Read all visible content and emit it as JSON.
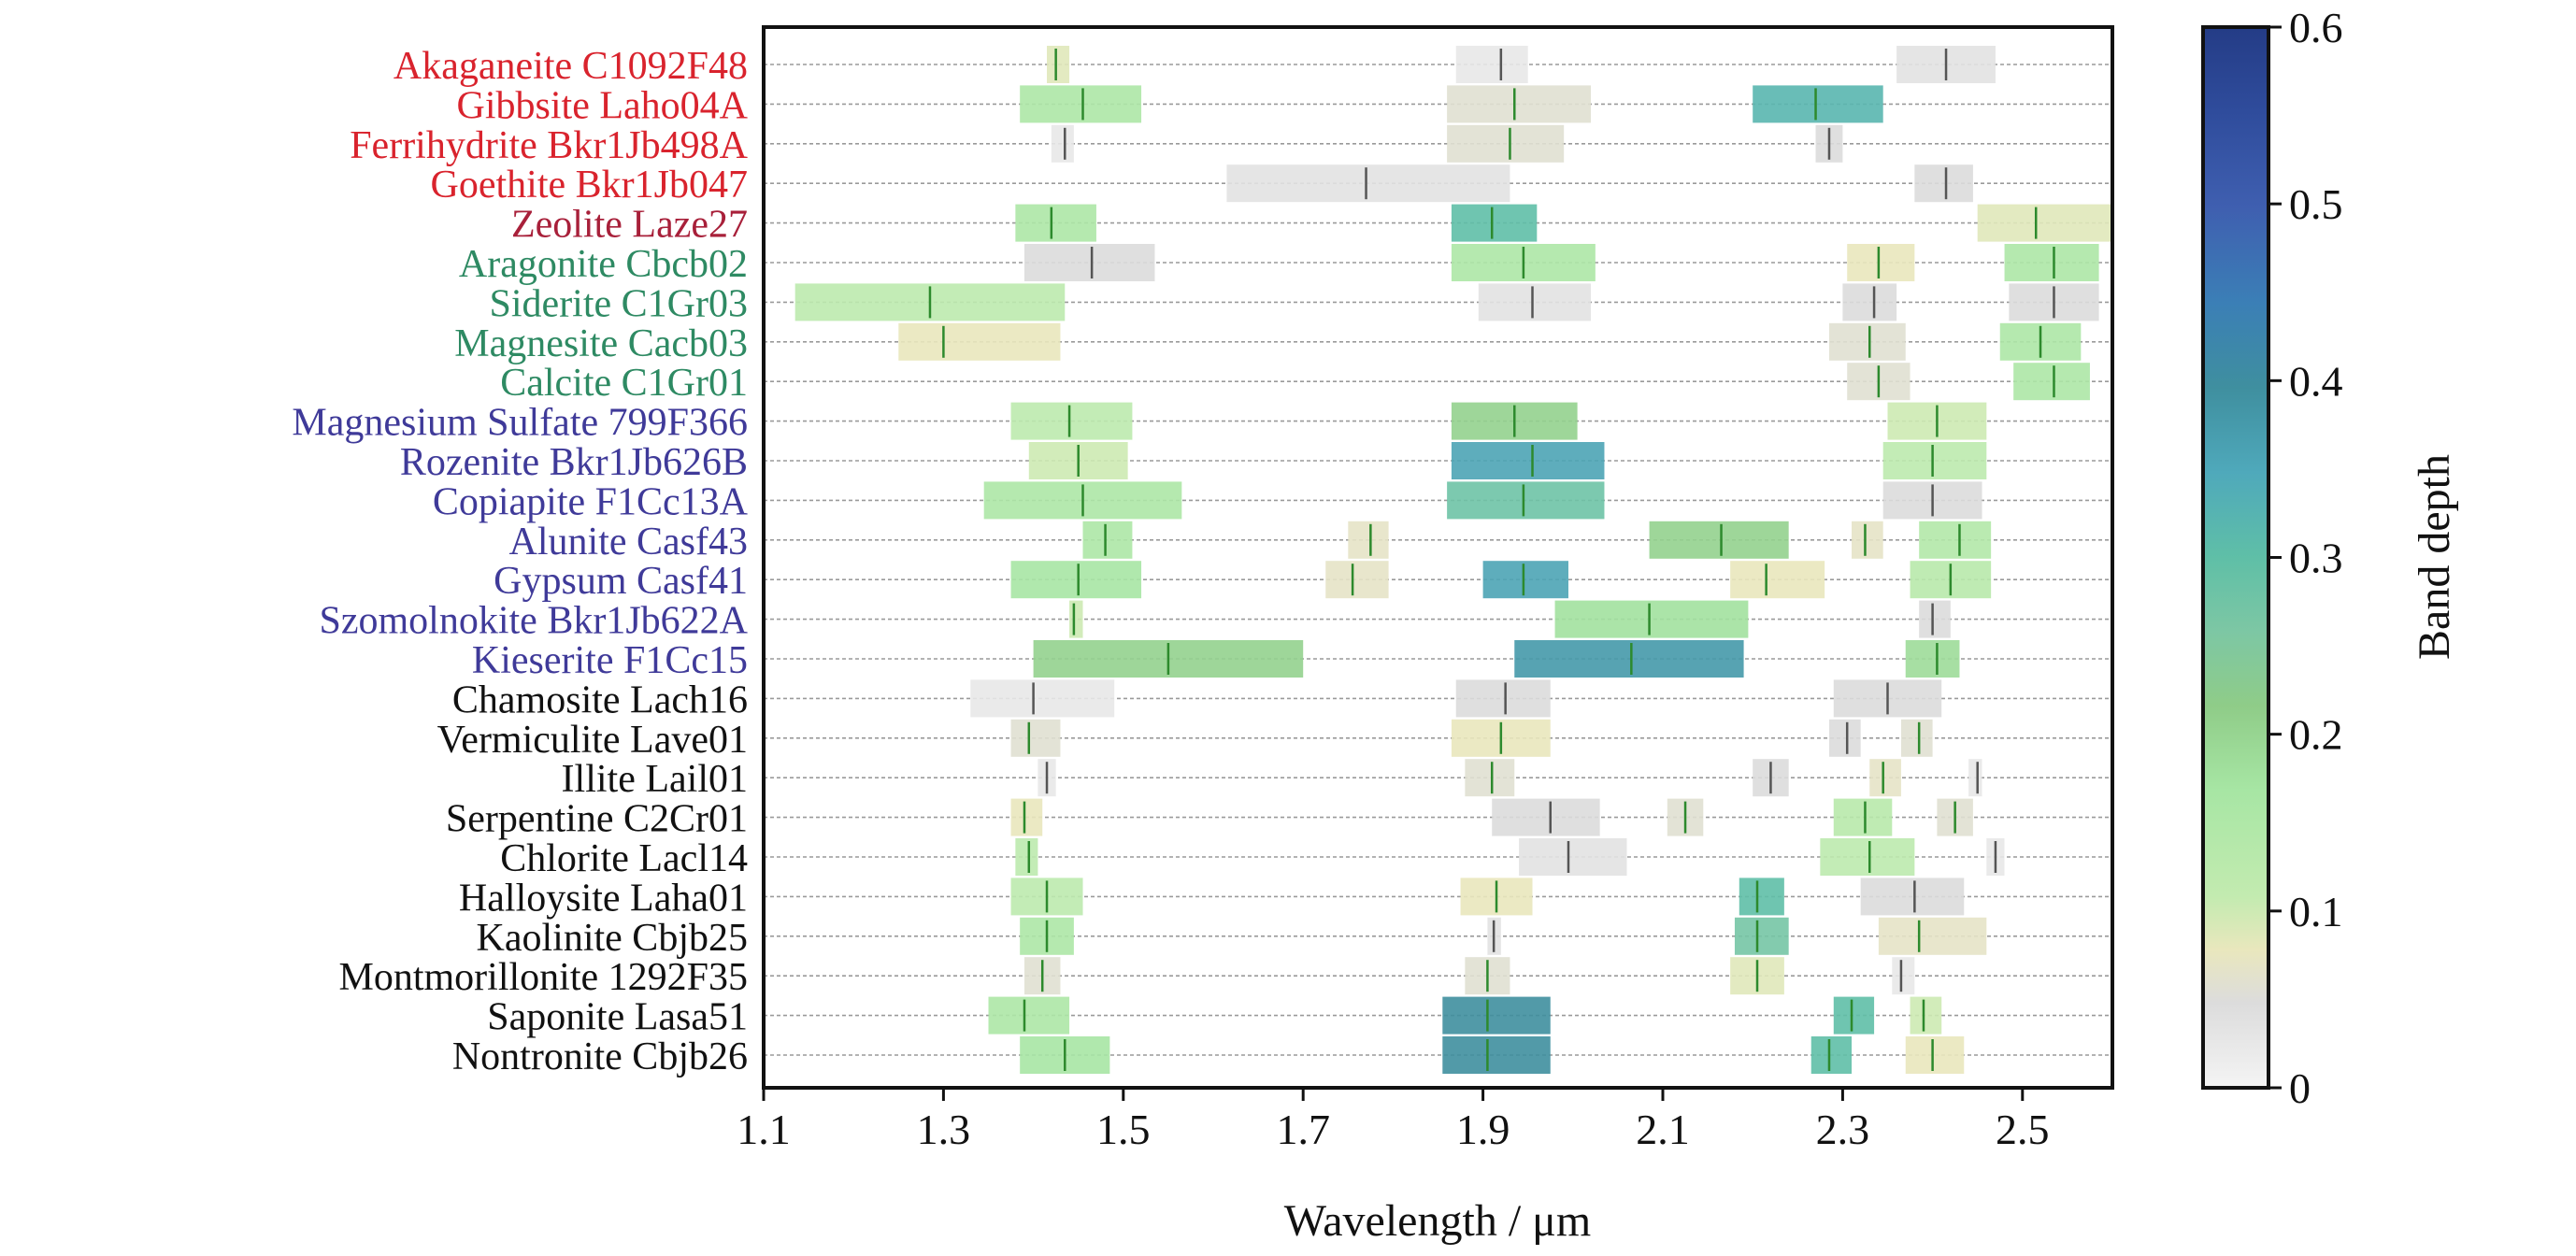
{
  "chart_data": {
    "type": "range-bar",
    "xlabel": "Wavelength / μm",
    "xlim": [
      1.1,
      2.6
    ],
    "xticks": [
      "1.1",
      "1.3",
      "1.5",
      "1.7",
      "1.9",
      "2.1",
      "2.3",
      "2.5"
    ],
    "colorbar": {
      "label": "Band depth",
      "range": [
        0,
        0.6
      ],
      "ticks": [
        "0",
        "0.1",
        "0.2",
        "0.3",
        "0.4",
        "0.5",
        "0.6"
      ]
    },
    "group_colors": {
      "red": "#d9232d",
      "maroon": "#a8203a",
      "green": "#2e8a63",
      "blue": "#3f3a99",
      "black": "#111111"
    },
    "minerals": [
      {
        "name": "Akaganeite C1092F48",
        "group": "red",
        "bands": [
          {
            "lo": 1.415,
            "hi": 1.44,
            "c": 1.425,
            "d": 0.08
          },
          {
            "lo": 1.87,
            "hi": 1.95,
            "c": 1.92,
            "d": 0.02
          },
          {
            "lo": 2.36,
            "hi": 2.47,
            "c": 2.415,
            "d": 0.03
          }
        ]
      },
      {
        "name": "Gibbsite Laho04A",
        "group": "red",
        "bands": [
          {
            "lo": 1.385,
            "hi": 1.52,
            "c": 1.455,
            "d": 0.15
          },
          {
            "lo": 1.86,
            "hi": 2.02,
            "c": 1.935,
            "d": 0.05
          },
          {
            "lo": 2.2,
            "hi": 2.345,
            "c": 2.27,
            "d": 0.32
          }
        ]
      },
      {
        "name": "Ferrihydrite Bkr1Jb498A",
        "group": "red",
        "bands": [
          {
            "lo": 1.42,
            "hi": 1.445,
            "c": 1.435,
            "d": 0.02
          },
          {
            "lo": 1.86,
            "hi": 1.99,
            "c": 1.93,
            "d": 0.05
          },
          {
            "lo": 2.27,
            "hi": 2.3,
            "c": 2.285,
            "d": 0.04
          }
        ]
      },
      {
        "name": "Goethite Bkr1Jb047",
        "group": "red",
        "bands": [
          {
            "lo": 1.615,
            "hi": 1.93,
            "c": 1.77,
            "d": 0.03
          },
          {
            "lo": 2.38,
            "hi": 2.445,
            "c": 2.415,
            "d": 0.04
          }
        ]
      },
      {
        "name": "Zeolite Laze27",
        "group": "maroon",
        "bands": [
          {
            "lo": 1.38,
            "hi": 1.47,
            "c": 1.42,
            "d": 0.15
          },
          {
            "lo": 1.865,
            "hi": 1.96,
            "c": 1.91,
            "d": 0.3
          },
          {
            "lo": 2.45,
            "hi": 2.6,
            "c": 2.515,
            "d": 0.08
          }
        ]
      },
      {
        "name": "Aragonite Cbcb02",
        "group": "green",
        "bands": [
          {
            "lo": 1.39,
            "hi": 1.535,
            "c": 1.465,
            "d": 0.04
          },
          {
            "lo": 1.865,
            "hi": 2.025,
            "c": 1.945,
            "d": 0.15
          },
          {
            "lo": 2.305,
            "hi": 2.38,
            "c": 2.34,
            "d": 0.07
          },
          {
            "lo": 2.48,
            "hi": 2.585,
            "c": 2.535,
            "d": 0.15
          }
        ]
      },
      {
        "name": "Siderite C1Gr03",
        "group": "green",
        "bands": [
          {
            "lo": 1.135,
            "hi": 1.435,
            "c": 1.285,
            "d": 0.12
          },
          {
            "lo": 1.895,
            "hi": 2.02,
            "c": 1.955,
            "d": 0.03
          },
          {
            "lo": 2.3,
            "hi": 2.36,
            "c": 2.335,
            "d": 0.04
          },
          {
            "lo": 2.485,
            "hi": 2.585,
            "c": 2.535,
            "d": 0.04
          }
        ]
      },
      {
        "name": "Magnesite Cacb03",
        "group": "green",
        "bands": [
          {
            "lo": 1.25,
            "hi": 1.43,
            "c": 1.3,
            "d": 0.07
          },
          {
            "lo": 2.285,
            "hi": 2.37,
            "c": 2.33,
            "d": 0.05
          },
          {
            "lo": 2.475,
            "hi": 2.565,
            "c": 2.52,
            "d": 0.15
          }
        ]
      },
      {
        "name": "Calcite C1Gr01",
        "group": "green",
        "bands": [
          {
            "lo": 2.305,
            "hi": 2.375,
            "c": 2.34,
            "d": 0.05
          },
          {
            "lo": 2.49,
            "hi": 2.575,
            "c": 2.535,
            "d": 0.15
          }
        ]
      },
      {
        "name": "Magnesium Sulfate 799F366",
        "group": "blue",
        "bands": [
          {
            "lo": 1.375,
            "hi": 1.51,
            "c": 1.44,
            "d": 0.12
          },
          {
            "lo": 1.865,
            "hi": 2.005,
            "c": 1.935,
            "d": 0.2
          },
          {
            "lo": 2.35,
            "hi": 2.46,
            "c": 2.405,
            "d": 0.1
          }
        ]
      },
      {
        "name": "Rozenite Bkr1Jb626B",
        "group": "blue",
        "bands": [
          {
            "lo": 1.395,
            "hi": 1.505,
            "c": 1.45,
            "d": 0.1
          },
          {
            "lo": 1.865,
            "hi": 2.035,
            "c": 1.955,
            "d": 0.36
          },
          {
            "lo": 2.345,
            "hi": 2.46,
            "c": 2.4,
            "d": 0.12
          }
        ]
      },
      {
        "name": "Copiapite F1Cc13A",
        "group": "blue",
        "bands": [
          {
            "lo": 1.345,
            "hi": 1.565,
            "c": 1.455,
            "d": 0.15
          },
          {
            "lo": 1.86,
            "hi": 2.035,
            "c": 1.945,
            "d": 0.28
          },
          {
            "lo": 2.345,
            "hi": 2.455,
            "c": 2.4,
            "d": 0.04
          }
        ]
      },
      {
        "name": "Alunite Casf43",
        "group": "blue",
        "bands": [
          {
            "lo": 1.455,
            "hi": 1.51,
            "c": 1.48,
            "d": 0.15
          },
          {
            "lo": 1.75,
            "hi": 1.795,
            "c": 1.775,
            "d": 0.06
          },
          {
            "lo": 2.085,
            "hi": 2.24,
            "c": 2.165,
            "d": 0.2
          },
          {
            "lo": 2.31,
            "hi": 2.345,
            "c": 2.325,
            "d": 0.06
          },
          {
            "lo": 2.385,
            "hi": 2.465,
            "c": 2.43,
            "d": 0.14
          }
        ]
      },
      {
        "name": "Gypsum Casf41",
        "group": "blue",
        "bands": [
          {
            "lo": 1.375,
            "hi": 1.52,
            "c": 1.45,
            "d": 0.16
          },
          {
            "lo": 1.725,
            "hi": 1.795,
            "c": 1.755,
            "d": 0.06
          },
          {
            "lo": 1.9,
            "hi": 1.995,
            "c": 1.945,
            "d": 0.36
          },
          {
            "lo": 2.175,
            "hi": 2.28,
            "c": 2.215,
            "d": 0.07
          },
          {
            "lo": 2.375,
            "hi": 2.465,
            "c": 2.42,
            "d": 0.13
          }
        ]
      },
      {
        "name": "Szomolnokite Bkr1Jb622A",
        "group": "blue",
        "bands": [
          {
            "lo": 1.44,
            "hi": 1.455,
            "c": 1.445,
            "d": 0.1
          },
          {
            "lo": 1.98,
            "hi": 2.195,
            "c": 2.085,
            "d": 0.17
          },
          {
            "lo": 2.385,
            "hi": 2.42,
            "c": 2.4,
            "d": 0.04
          }
        ]
      },
      {
        "name": "Kieserite F1Cc15",
        "group": "blue",
        "bands": [
          {
            "lo": 1.4,
            "hi": 1.7,
            "c": 1.55,
            "d": 0.2
          },
          {
            "lo": 1.935,
            "hi": 2.19,
            "c": 2.065,
            "d": 0.38
          },
          {
            "lo": 2.37,
            "hi": 2.43,
            "c": 2.405,
            "d": 0.18
          }
        ]
      },
      {
        "name": "Chamosite Lach16",
        "group": "black",
        "bands": [
          {
            "lo": 1.33,
            "hi": 1.49,
            "c": 1.4,
            "d": 0.02
          },
          {
            "lo": 1.87,
            "hi": 1.975,
            "c": 1.925,
            "d": 0.04
          },
          {
            "lo": 2.29,
            "hi": 2.41,
            "c": 2.35,
            "d": 0.04
          }
        ]
      },
      {
        "name": "Vermiculite Lave01",
        "group": "black",
        "bands": [
          {
            "lo": 1.375,
            "hi": 1.43,
            "c": 1.395,
            "d": 0.05
          },
          {
            "lo": 1.865,
            "hi": 1.975,
            "c": 1.92,
            "d": 0.07
          },
          {
            "lo": 2.285,
            "hi": 2.32,
            "c": 2.305,
            "d": 0.04
          },
          {
            "lo": 2.365,
            "hi": 2.4,
            "c": 2.385,
            "d": 0.05
          }
        ]
      },
      {
        "name": "Illite Lail01",
        "group": "black",
        "bands": [
          {
            "lo": 1.405,
            "hi": 1.425,
            "c": 1.415,
            "d": 0.02
          },
          {
            "lo": 1.88,
            "hi": 1.935,
            "c": 1.91,
            "d": 0.05
          },
          {
            "lo": 2.2,
            "hi": 2.24,
            "c": 2.22,
            "d": 0.04
          },
          {
            "lo": 2.33,
            "hi": 2.365,
            "c": 2.345,
            "d": 0.06
          },
          {
            "lo": 2.44,
            "hi": 2.455,
            "c": 2.45,
            "d": 0.02
          }
        ]
      },
      {
        "name": "Serpentine C2Cr01",
        "group": "black",
        "bands": [
          {
            "lo": 1.375,
            "hi": 1.41,
            "c": 1.39,
            "d": 0.07
          },
          {
            "lo": 1.91,
            "hi": 2.03,
            "c": 1.975,
            "d": 0.04
          },
          {
            "lo": 2.105,
            "hi": 2.145,
            "c": 2.125,
            "d": 0.05
          },
          {
            "lo": 2.29,
            "hi": 2.355,
            "c": 2.325,
            "d": 0.13
          },
          {
            "lo": 2.405,
            "hi": 2.445,
            "c": 2.425,
            "d": 0.05
          }
        ]
      },
      {
        "name": "Chlorite Lacl14",
        "group": "black",
        "bands": [
          {
            "lo": 1.38,
            "hi": 1.405,
            "c": 1.395,
            "d": 0.12
          },
          {
            "lo": 1.94,
            "hi": 2.06,
            "c": 1.995,
            "d": 0.03
          },
          {
            "lo": 2.275,
            "hi": 2.38,
            "c": 2.33,
            "d": 0.12
          },
          {
            "lo": 2.46,
            "hi": 2.48,
            "c": 2.47,
            "d": 0.02
          }
        ]
      },
      {
        "name": "Halloysite Laha01",
        "group": "black",
        "bands": [
          {
            "lo": 1.375,
            "hi": 1.455,
            "c": 1.415,
            "d": 0.12
          },
          {
            "lo": 1.875,
            "hi": 1.955,
            "c": 1.915,
            "d": 0.07
          },
          {
            "lo": 2.185,
            "hi": 2.235,
            "c": 2.205,
            "d": 0.3
          },
          {
            "lo": 2.32,
            "hi": 2.435,
            "c": 2.38,
            "d": 0.04
          }
        ]
      },
      {
        "name": "Kaolinite Cbjb25",
        "group": "black",
        "bands": [
          {
            "lo": 1.385,
            "hi": 1.445,
            "c": 1.415,
            "d": 0.15
          },
          {
            "lo": 1.905,
            "hi": 1.92,
            "c": 1.912,
            "d": 0.03
          },
          {
            "lo": 2.18,
            "hi": 2.24,
            "c": 2.205,
            "d": 0.27
          },
          {
            "lo": 2.34,
            "hi": 2.46,
            "c": 2.385,
            "d": 0.06
          }
        ]
      },
      {
        "name": "Montmorillonite 1292F35",
        "group": "black",
        "bands": [
          {
            "lo": 1.39,
            "hi": 1.43,
            "c": 1.41,
            "d": 0.05
          },
          {
            "lo": 1.88,
            "hi": 1.93,
            "c": 1.905,
            "d": 0.05
          },
          {
            "lo": 2.175,
            "hi": 2.235,
            "c": 2.205,
            "d": 0.08
          },
          {
            "lo": 2.355,
            "hi": 2.38,
            "c": 2.365,
            "d": 0.02
          }
        ]
      },
      {
        "name": "Saponite Lasa51",
        "group": "black",
        "bands": [
          {
            "lo": 1.35,
            "hi": 1.44,
            "c": 1.39,
            "d": 0.15
          },
          {
            "lo": 1.855,
            "hi": 1.975,
            "c": 1.905,
            "d": 0.4
          },
          {
            "lo": 2.29,
            "hi": 2.335,
            "c": 2.31,
            "d": 0.3
          },
          {
            "lo": 2.375,
            "hi": 2.41,
            "c": 2.39,
            "d": 0.1
          }
        ]
      },
      {
        "name": "Nontronite Cbjb26",
        "group": "black",
        "bands": [
          {
            "lo": 1.385,
            "hi": 1.485,
            "c": 1.435,
            "d": 0.16
          },
          {
            "lo": 1.855,
            "hi": 1.975,
            "c": 1.905,
            "d": 0.4
          },
          {
            "lo": 2.265,
            "hi": 2.31,
            "c": 2.285,
            "d": 0.3
          },
          {
            "lo": 2.37,
            "hi": 2.435,
            "c": 2.4,
            "d": 0.07
          }
        ]
      }
    ]
  }
}
